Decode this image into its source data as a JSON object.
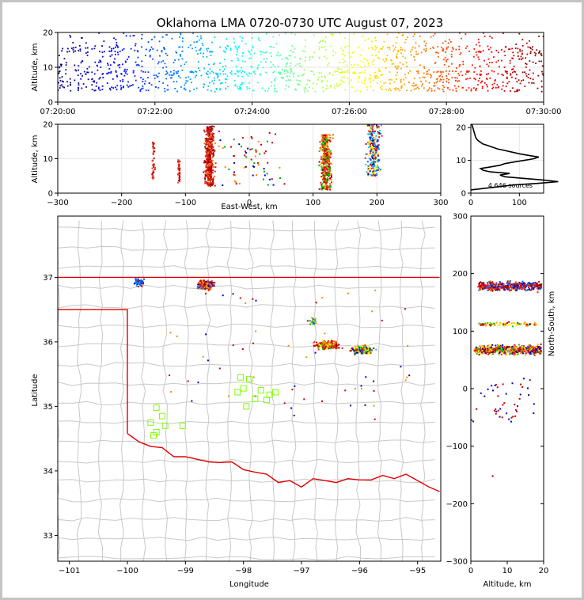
{
  "title": "Oklahoma LMA 0720-0730 UTC August 07, 2023",
  "colors": {
    "state_border": "#e00000",
    "county_line": "#c8c8c8",
    "histogram": "#000000",
    "stations": "#7fff00",
    "frame": "#000000"
  },
  "chart_data": [
    {
      "id": "alt-time",
      "type": "scatter",
      "xlabel": "",
      "ylabel": "Altitude, km",
      "x_tick_labels": [
        "07:20:00",
        "07:22:00",
        "07:24:00",
        "07:26:00",
        "07:28:00",
        "07:30:00"
      ],
      "xlim_minutes": [
        0,
        10
      ],
      "ylim": [
        0,
        20
      ],
      "y_ticks": [
        0,
        10,
        20
      ],
      "colormap": "jet (by time)",
      "grid": true
    },
    {
      "id": "alt-ew",
      "type": "scatter",
      "xlabel": "East-West, km",
      "ylabel": "Altitude, km",
      "xlim": [
        -300,
        300
      ],
      "x_ticks": [
        -300,
        -200,
        -100,
        0,
        100,
        200,
        300
      ],
      "ylim": [
        0,
        20
      ],
      "y_ticks": [
        0,
        10,
        20
      ],
      "grid": true
    },
    {
      "id": "alt-histogram",
      "type": "line",
      "xlim": [
        0,
        150
      ],
      "x_ticks": [
        0,
        100
      ],
      "ylim": [
        0,
        21
      ],
      "y_ticks": [
        0,
        10,
        20
      ],
      "annotation": "4,646 sources",
      "profile": [
        [
          0,
          1
        ],
        [
          30,
          1.5
        ],
        [
          60,
          2
        ],
        [
          90,
          2.5
        ],
        [
          140,
          3
        ],
        [
          180,
          3.5
        ],
        [
          150,
          4
        ],
        [
          110,
          4.5
        ],
        [
          70,
          5
        ],
        [
          60,
          5.5
        ],
        [
          80,
          6
        ],
        [
          40,
          6.5
        ],
        [
          25,
          7
        ],
        [
          20,
          7.5
        ],
        [
          40,
          8
        ],
        [
          60,
          8.5
        ],
        [
          70,
          9
        ],
        [
          90,
          9.5
        ],
        [
          110,
          10
        ],
        [
          130,
          10.5
        ],
        [
          140,
          11
        ],
        [
          120,
          11.5
        ],
        [
          100,
          12
        ],
        [
          85,
          12.5
        ],
        [
          70,
          13
        ],
        [
          55,
          13.5
        ],
        [
          45,
          14
        ],
        [
          35,
          14.5
        ],
        [
          25,
          15
        ],
        [
          20,
          15.5
        ],
        [
          15,
          16
        ],
        [
          12,
          16.5
        ],
        [
          10,
          17
        ],
        [
          8,
          18
        ],
        [
          6,
          19
        ],
        [
          4,
          20
        ],
        [
          2,
          21
        ]
      ]
    },
    {
      "id": "plan-view",
      "type": "scatter",
      "xlabel": "Longitude",
      "ylabel": "Latitude",
      "xlim": [
        -101.2,
        -94.6
      ],
      "x_ticks": [
        -101,
        -100,
        -99,
        -98,
        -97,
        -96,
        -95
      ],
      "ylim": [
        32.6,
        37.95
      ],
      "y_ticks": [
        33,
        34,
        35,
        36,
        37
      ],
      "clusters": [
        {
          "lon": -99.8,
          "lat": 36.92,
          "n": 60
        },
        {
          "lon": -98.65,
          "lat": 36.88,
          "n": 420
        },
        {
          "lon": -96.55,
          "lat": 35.95,
          "n": 260
        },
        {
          "lon": -95.95,
          "lat": 35.88,
          "n": 220
        },
        {
          "lon": -96.8,
          "lat": 36.32,
          "n": 20
        }
      ],
      "stations": [
        [
          -99.5,
          34.98
        ],
        [
          -99.6,
          34.75
        ],
        [
          -99.4,
          34.85
        ],
        [
          -99.5,
          34.6
        ],
        [
          -99.55,
          34.55
        ],
        [
          -99.35,
          34.7
        ],
        [
          -99.05,
          34.7
        ],
        [
          -98.05,
          35.45
        ],
        [
          -98.0,
          35.28
        ],
        [
          -97.9,
          35.42
        ],
        [
          -98.1,
          35.22
        ],
        [
          -97.95,
          35.0
        ],
        [
          -97.8,
          35.12
        ],
        [
          -97.7,
          35.25
        ],
        [
          -97.55,
          35.18
        ],
        [
          -97.45,
          35.22
        ],
        [
          -97.6,
          35.1
        ]
      ]
    },
    {
      "id": "ns-alt",
      "type": "scatter",
      "xlabel": "Altitude, km",
      "ylabel": "North-South, km",
      "xlim": [
        0,
        20
      ],
      "x_ticks": [
        0,
        10,
        20
      ],
      "ylim": [
        -300,
        300
      ],
      "y_ticks": [
        -300,
        -200,
        -100,
        0,
        100,
        200,
        300
      ]
    }
  ],
  "labels": {
    "p1_ylabel": "Altitude, km",
    "p2_ylabel": "Altitude, km",
    "p2_xlabel": "East-West, km",
    "p4_xlabel": "Longitude",
    "p4_ylabel": "Latitude",
    "p5_xlabel": "Altitude, km",
    "p5_ylabel": "North-South, km",
    "hist_annot": "4,646 sources"
  }
}
